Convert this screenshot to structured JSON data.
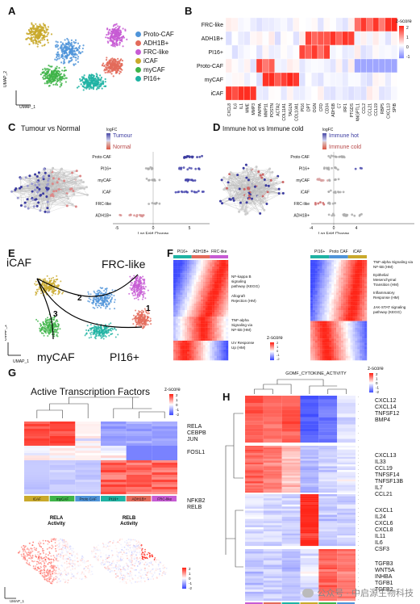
{
  "panels": {
    "A": {
      "label": "A",
      "legend": [
        {
          "name": "Proto-CAF",
          "color": "#4f94d9"
        },
        {
          "name": "ADH1B+",
          "color": "#e36b5b"
        },
        {
          "name": "FRC-like",
          "color": "#c75bd4"
        },
        {
          "name": "iCAF",
          "color": "#c9a92b"
        },
        {
          "name": "myCAF",
          "color": "#3fb449"
        },
        {
          "name": "PI16+",
          "color": "#1fb3a3"
        }
      ],
      "xaxis": "UMAP_1",
      "yaxis": "UMAP_2"
    },
    "B": {
      "label": "B",
      "rows": [
        "FRC-like",
        "ADH1B+",
        "PI16+",
        "Proto-CAF",
        "myCAF",
        "iCAF"
      ],
      "cols": [
        "CXCL8",
        "IL6",
        "IL1",
        "MME",
        "MMP3",
        "PAPPA",
        "MMP11",
        "POSTN",
        "ACTA2",
        "COL11A1",
        "TAGLN",
        "COL10A1",
        "PI16",
        "DPT",
        "OGN",
        "CFD",
        "CD34",
        "ADH1B",
        "C7",
        "IRF1",
        "PTGDS",
        "ANGPTL1",
        "CCL2",
        "CCL21",
        "CCL19",
        "RBP5",
        "CXCL13",
        "SPIB"
      ],
      "scale_title": "z-score",
      "scale_ticks": [
        "2",
        "1",
        "0",
        "-1"
      ]
    },
    "C": {
      "label": "C",
      "title": "Tumour vs Normal",
      "legend_title": "logFC",
      "legend": [
        "Tumour",
        "Normal"
      ],
      "rows": [
        "Proto-CAF",
        "PI16+",
        "myCAF",
        "iCAF",
        "FRC-like",
        "ADH1B+"
      ],
      "xlabel": "Log Fold Change",
      "ticks": [
        "-5",
        "0",
        "5"
      ]
    },
    "D": {
      "label": "D",
      "title": "Immune hot vs Immune cold",
      "legend_title": "logFC",
      "legend": [
        "Immune hot",
        "Immune cold"
      ],
      "rows": [
        "Proto-CAF",
        "PI16+",
        "myCAF",
        "iCAF",
        "FRC-like",
        "ADH1B+"
      ],
      "xlabel": "Log Fold Change",
      "ticks": [
        "-4",
        "0",
        "4"
      ]
    },
    "E": {
      "label": "E",
      "labels": [
        "iCAF",
        "FRC-like",
        "myCAF",
        "PI16+"
      ],
      "paths": [
        "1",
        "2",
        "3"
      ],
      "xaxis": "UMAP_1",
      "yaxis": "UMAP_2"
    },
    "F": {
      "label": "F",
      "left_header": [
        "PI16+",
        "ADH1B+",
        "FRC-like"
      ],
      "left_terms": [
        "NF-kappa B signaling pathway (KEGG)",
        "Allograft Rejection (HM)",
        "TNF-alpha Signaling via NF-kB (HM)",
        "UV Response Up (HM)"
      ],
      "right_header": [
        "PI16+",
        "Proto CAF",
        "iCAF"
      ],
      "right_terms": [
        "TNF-alpha Signaling via NF-kB (HM)",
        "Epithelial Mesenchymal Transition (HM)",
        "Inflammatory Response (HM)",
        "JAK-STAT signaling pathway (KEGG)"
      ],
      "scale_title": "z-score",
      "scale_ticks": [
        "2",
        "1",
        "0",
        "-1",
        "-2"
      ]
    },
    "G": {
      "label": "G",
      "title": "Active Transcription Factors",
      "scale_title": "z-score",
      "scale_ticks": [
        "2",
        "1",
        "0",
        "-1",
        "-2"
      ],
      "genes": [
        "RELA",
        "CEBPB",
        "JUN",
        "FOSL1",
        "NFKB2",
        "RELB"
      ],
      "groups": [
        "iCAF",
        "myCAF",
        "Proto CAF",
        "PI16+",
        "ADH1B+",
        "FRC-like"
      ],
      "sub_left": "RELA\nActivity",
      "sub_right": "RELB\nActivity",
      "sub_left_1": "RELA",
      "sub_left_2": "Activity",
      "sub_right_1": "RELB",
      "sub_right_2": "Activity",
      "sub_scale": [
        "2",
        "1",
        "0",
        "-1",
        "-2"
      ],
      "xaxis": "UMAP_1",
      "yaxis": "UMAP_2"
    },
    "H": {
      "label": "H",
      "title": "GOMF_CYTOKINE_ACTIVITY",
      "scale_title": "z-score",
      "scale_ticks": [
        "2",
        "1",
        "0",
        "-1",
        "-2"
      ],
      "genes": [
        "CXCL12",
        "CXCL14",
        "TNFSF12",
        "BMP4",
        "CXCL13",
        "IL33",
        "CCL19",
        "TNFSF14",
        "TNFSF13B",
        "IL7",
        "CCL21",
        "CXCL1",
        "IL24",
        "CXCL6",
        "CXCL8",
        "IL11",
        "IL6",
        "CSF3",
        "TGFB3",
        "WNT5A",
        "INHBA",
        "TGFB1",
        "TGFB2"
      ],
      "groups": [
        "FRC-like",
        "ADH1B+",
        "PI16+",
        "iCAF",
        "myCAF",
        "Proto CAF"
      ]
    }
  },
  "group_colors": {
    "iCAF": "#c9a92b",
    "myCAF": "#3fb449",
    "Proto CAF": "#4f94d9",
    "PI16+": "#1fb3a3",
    "ADH1B+": "#e36b5b",
    "FRC-like": "#c75bd4",
    "Proto-CAF": "#4f94d9"
  },
  "watermark": "公众号 · 中启源生物科技"
}
